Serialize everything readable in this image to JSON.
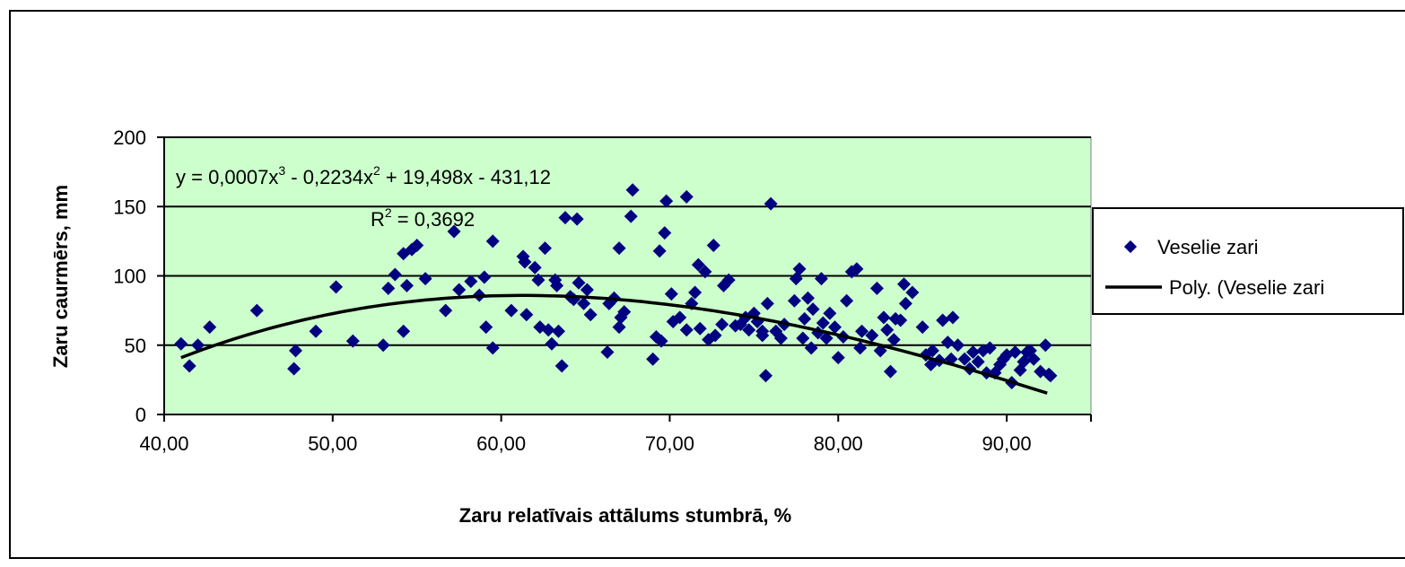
{
  "chart_data": {
    "type": "scatter",
    "xlabel": "Zaru relatīvais attālums stumbrā, %",
    "ylabel": "Zaru caurmērs, mm",
    "xlim": [
      40,
      95
    ],
    "ylim": [
      0,
      200
    ],
    "x_ticks": [
      "40,00",
      "50,00",
      "60,00",
      "70,00",
      "80,00",
      "90,00"
    ],
    "y_ticks": [
      "0",
      "50",
      "100",
      "150",
      "200"
    ],
    "grid": "horizontal",
    "plot_background": "#ccffcc",
    "marker_color": "#000080",
    "trend_color": "#000000",
    "equation": {
      "prefix": "y = 0,0007x",
      "exp1": "3",
      "mid": " - 0,2234x",
      "exp2": "2",
      "suffix": " + 19,498x - 431,12",
      "r2_prefix": "R",
      "r2_exp": "2",
      "r2_suffix": " = 0,3692"
    },
    "trendline": {
      "coefficients": [
        0.0007,
        -0.2234,
        19.498,
        -431.12
      ],
      "x_range": [
        41,
        92.4
      ]
    },
    "legend": {
      "position": "right",
      "entries": [
        "Veselie zari",
        "Poly. (Veselie zari"
      ]
    },
    "series": [
      {
        "name": "Veselie zari",
        "points": [
          [
            41.0,
            51
          ],
          [
            41.5,
            35
          ],
          [
            42.0,
            50
          ],
          [
            42.7,
            63
          ],
          [
            45.5,
            75
          ],
          [
            47.7,
            33
          ],
          [
            47.8,
            46
          ],
          [
            49.0,
            60
          ],
          [
            50.2,
            92
          ],
          [
            51.2,
            53
          ],
          [
            53.0,
            50
          ],
          [
            53.3,
            91
          ],
          [
            53.7,
            101
          ],
          [
            54.2,
            60
          ],
          [
            54.2,
            116
          ],
          [
            54.4,
            93
          ],
          [
            54.7,
            119
          ],
          [
            55.0,
            122
          ],
          [
            55.5,
            98
          ],
          [
            56.7,
            75
          ],
          [
            57.2,
            132
          ],
          [
            57.5,
            90
          ],
          [
            58.2,
            96
          ],
          [
            58.7,
            86
          ],
          [
            59.0,
            99
          ],
          [
            59.1,
            63
          ],
          [
            59.5,
            48
          ],
          [
            59.5,
            125
          ],
          [
            60.6,
            75
          ],
          [
            61.3,
            114
          ],
          [
            61.4,
            110
          ],
          [
            61.5,
            72
          ],
          [
            62.0,
            106
          ],
          [
            62.2,
            97
          ],
          [
            62.3,
            63
          ],
          [
            62.6,
            120
          ],
          [
            62.8,
            61
          ],
          [
            63.0,
            51
          ],
          [
            63.2,
            97
          ],
          [
            63.3,
            93
          ],
          [
            63.4,
            60
          ],
          [
            63.6,
            35
          ],
          [
            63.8,
            142
          ],
          [
            64.1,
            85
          ],
          [
            64.3,
            83
          ],
          [
            64.5,
            141
          ],
          [
            64.6,
            95
          ],
          [
            64.9,
            80
          ],
          [
            65.1,
            90
          ],
          [
            65.3,
            72
          ],
          [
            66.3,
            45
          ],
          [
            66.4,
            80
          ],
          [
            66.7,
            84
          ],
          [
            67.0,
            120
          ],
          [
            67.0,
            63
          ],
          [
            67.1,
            70
          ],
          [
            67.3,
            74
          ],
          [
            67.7,
            143
          ],
          [
            67.8,
            162
          ],
          [
            69.0,
            40
          ],
          [
            69.2,
            56
          ],
          [
            69.4,
            118
          ],
          [
            69.5,
            53
          ],
          [
            69.7,
            131
          ],
          [
            69.8,
            154
          ],
          [
            70.1,
            87
          ],
          [
            70.2,
            67
          ],
          [
            70.6,
            70
          ],
          [
            71.0,
            61
          ],
          [
            71.0,
            157
          ],
          [
            71.3,
            80
          ],
          [
            71.5,
            88
          ],
          [
            71.7,
            108
          ],
          [
            71.8,
            62
          ],
          [
            72.1,
            103
          ],
          [
            72.3,
            54
          ],
          [
            72.6,
            122
          ],
          [
            72.7,
            57
          ],
          [
            73.1,
            65
          ],
          [
            73.2,
            93
          ],
          [
            73.5,
            97
          ],
          [
            73.9,
            64
          ],
          [
            74.2,
            65
          ],
          [
            74.5,
            70
          ],
          [
            74.7,
            61
          ],
          [
            75.0,
            73
          ],
          [
            75.2,
            67
          ],
          [
            75.5,
            60
          ],
          [
            75.5,
            57
          ],
          [
            75.7,
            28
          ],
          [
            75.8,
            80
          ],
          [
            76.0,
            152
          ],
          [
            76.3,
            60
          ],
          [
            76.6,
            55
          ],
          [
            76.8,
            65
          ],
          [
            77.4,
            82
          ],
          [
            77.5,
            98
          ],
          [
            77.7,
            105
          ],
          [
            77.9,
            55
          ],
          [
            78.0,
            69
          ],
          [
            78.2,
            84
          ],
          [
            78.4,
            48
          ],
          [
            78.5,
            76
          ],
          [
            78.8,
            59
          ],
          [
            79.0,
            98
          ],
          [
            79.1,
            66
          ],
          [
            79.3,
            55
          ],
          [
            79.5,
            73
          ],
          [
            79.8,
            63
          ],
          [
            80.0,
            41
          ],
          [
            80.3,
            56
          ],
          [
            80.5,
            82
          ],
          [
            80.8,
            103
          ],
          [
            81.1,
            105
          ],
          [
            81.3,
            48
          ],
          [
            81.4,
            60
          ],
          [
            82.0,
            57
          ],
          [
            82.3,
            91
          ],
          [
            82.5,
            46
          ],
          [
            82.7,
            70
          ],
          [
            82.9,
            61
          ],
          [
            83.1,
            31
          ],
          [
            83.3,
            54
          ],
          [
            83.4,
            69
          ],
          [
            83.7,
            68
          ],
          [
            83.9,
            94
          ],
          [
            84.0,
            80
          ],
          [
            84.4,
            88
          ],
          [
            85.0,
            63
          ],
          [
            85.2,
            43
          ],
          [
            85.5,
            36
          ],
          [
            85.6,
            46
          ],
          [
            86.0,
            39
          ],
          [
            86.2,
            68
          ],
          [
            86.5,
            52
          ],
          [
            86.7,
            40
          ],
          [
            86.8,
            70
          ],
          [
            87.1,
            50
          ],
          [
            87.5,
            40
          ],
          [
            87.8,
            33
          ],
          [
            88.0,
            45
          ],
          [
            88.3,
            38
          ],
          [
            88.6,
            46
          ],
          [
            88.8,
            30
          ],
          [
            89.0,
            48
          ],
          [
            89.3,
            30
          ],
          [
            89.6,
            36
          ],
          [
            89.8,
            40
          ],
          [
            90.0,
            43
          ],
          [
            90.3,
            23
          ],
          [
            90.5,
            45
          ],
          [
            90.8,
            32
          ],
          [
            91.0,
            38
          ],
          [
            91.2,
            45
          ],
          [
            91.4,
            46
          ],
          [
            91.6,
            40
          ],
          [
            92.0,
            31
          ],
          [
            92.3,
            50
          ],
          [
            92.5,
            29
          ],
          [
            92.6,
            28
          ]
        ]
      }
    ]
  }
}
